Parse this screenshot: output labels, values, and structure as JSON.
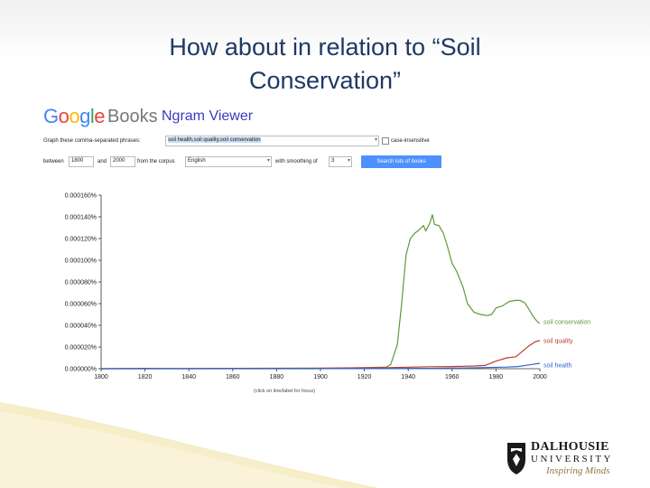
{
  "slide": {
    "title_line1": "How about in relation to “Soil",
    "title_line2": "Conservation”"
  },
  "ngram_header": {
    "google_letters": [
      "G",
      "o",
      "o",
      "g",
      "l",
      "e"
    ],
    "google_colors": [
      "#4285f4",
      "#ea4335",
      "#fbbc05",
      "#4285f4",
      "#34a853",
      "#ea4335"
    ],
    "books_label": "Books",
    "viewer_label": "Ngram Viewer"
  },
  "form": {
    "graph_label": "Graph these comma-separated phrases:",
    "phrases_value": "soil health,soil quality,soil conservation",
    "case_label": "case-insensitive",
    "between_label": "between",
    "start_year": "1800",
    "and_label": "and",
    "end_year": "2000",
    "corpus_label": "from the corpus",
    "corpus_value": "English",
    "smoothing_label": "with smoothing of",
    "smoothing_value": "3",
    "search_button": "Search lots of books"
  },
  "chart_data": {
    "type": "line",
    "x_ticks": [
      "1800",
      "1820",
      "1840",
      "1860",
      "1880",
      "1900",
      "1920",
      "1940",
      "1960",
      "1980",
      "2000"
    ],
    "y_ticks": [
      "0.000000%",
      "0.000020%",
      "0.000040%",
      "0.000060%",
      "0.000080%",
      "0.000100%",
      "0.000120%",
      "0.000140%",
      "0.000160%"
    ],
    "xlim": [
      1800,
      2000
    ],
    "ylim": [
      0,
      0.00016
    ],
    "footer_note": "(click on line/label for focus)",
    "series": [
      {
        "name": "soil conservation",
        "color": "#5a9a3c",
        "points": [
          [
            1800,
            0
          ],
          [
            1900,
            0
          ],
          [
            1910,
            6e-07
          ],
          [
            1920,
            1e-06
          ],
          [
            1930,
            1.5e-06
          ],
          [
            1932,
            4e-06
          ],
          [
            1935,
            2.2e-05
          ],
          [
            1937,
            6e-05
          ],
          [
            1939,
            0.000105
          ],
          [
            1941,
            0.00012
          ],
          [
            1943,
            0.000125
          ],
          [
            1945,
            0.000128
          ],
          [
            1947,
            0.000132
          ],
          [
            1948,
            0.000127
          ],
          [
            1950,
            0.000135
          ],
          [
            1951,
            0.000142
          ],
          [
            1952,
            0.000133
          ],
          [
            1954,
            0.000132
          ],
          [
            1956,
            0.000125
          ],
          [
            1958,
            0.000112
          ],
          [
            1960,
            9.7e-05
          ],
          [
            1962,
            9e-05
          ],
          [
            1965,
            7.5e-05
          ],
          [
            1967,
            6e-05
          ],
          [
            1970,
            5.2e-05
          ],
          [
            1973,
            5e-05
          ],
          [
            1976,
            4.9e-05
          ],
          [
            1978,
            5e-05
          ],
          [
            1980,
            5.6e-05
          ],
          [
            1983,
            5.8e-05
          ],
          [
            1986,
            6.2e-05
          ],
          [
            1989,
            6.3e-05
          ],
          [
            1991,
            6.3e-05
          ],
          [
            1993,
            6.1e-05
          ],
          [
            1995,
            5.5e-05
          ],
          [
            1997,
            4.8e-05
          ],
          [
            1999,
            4.3e-05
          ],
          [
            2000,
            4.2e-05
          ]
        ]
      },
      {
        "name": "soil quality",
        "color": "#c0392b",
        "points": [
          [
            1800,
            0
          ],
          [
            1820,
            3e-07
          ],
          [
            1830,
            2e-07
          ],
          [
            1900,
            6e-07
          ],
          [
            1930,
            1e-06
          ],
          [
            1950,
            1.8e-06
          ],
          [
            1960,
            2e-06
          ],
          [
            1970,
            2.5e-06
          ],
          [
            1975,
            3e-06
          ],
          [
            1980,
            7e-06
          ],
          [
            1985,
            1e-05
          ],
          [
            1989,
            1.1e-05
          ],
          [
            1992,
            1.6e-05
          ],
          [
            1995,
            2.1e-05
          ],
          [
            1998,
            2.5e-05
          ],
          [
            2000,
            2.6e-05
          ]
        ]
      },
      {
        "name": "soil health",
        "color": "#3366cc",
        "points": [
          [
            1800,
            0
          ],
          [
            1950,
            3e-07
          ],
          [
            1970,
            8e-07
          ],
          [
            1985,
            1.5e-06
          ],
          [
            1990,
            2e-06
          ],
          [
            1995,
            3.5e-06
          ],
          [
            2000,
            5e-06
          ]
        ]
      }
    ]
  },
  "university": {
    "name": "DALHOUSIE",
    "univ": "UNIVERSITY",
    "tagline": "Inspiring Minds"
  }
}
